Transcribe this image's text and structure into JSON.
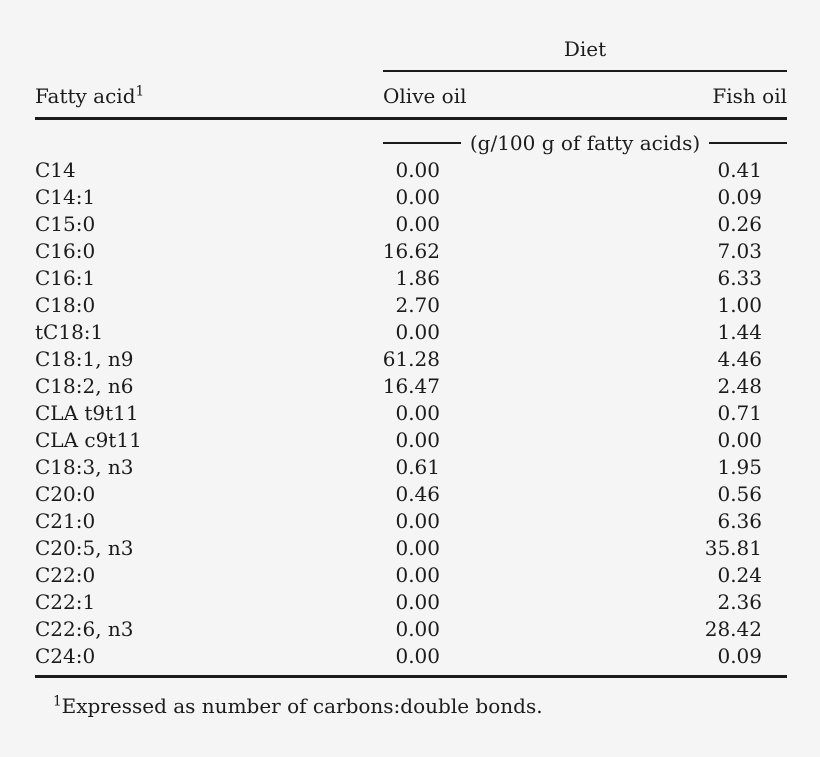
{
  "page": {
    "background_color": "#f5f5f5",
    "text_color": "#1b1b1b"
  },
  "table": {
    "spanner": {
      "label": "Diet"
    },
    "columns": {
      "fatty_acid_label": "Fatty acid",
      "fatty_acid_footnote_marker": "1",
      "olive_oil_label": "Olive oil",
      "fish_oil_label": "Fish oil"
    },
    "units_text": "(g/100 g of fatty acids)",
    "rows": [
      {
        "fatty_acid": "C14",
        "olive_oil": "0.00",
        "fish_oil": "0.41"
      },
      {
        "fatty_acid": "C14:1",
        "olive_oil": "0.00",
        "fish_oil": "0.09"
      },
      {
        "fatty_acid": "C15:0",
        "olive_oil": "0.00",
        "fish_oil": "0.26"
      },
      {
        "fatty_acid": "C16:0",
        "olive_oil": "16.62",
        "fish_oil": "7.03"
      },
      {
        "fatty_acid": "C16:1",
        "olive_oil": "1.86",
        "fish_oil": "6.33"
      },
      {
        "fatty_acid": "C18:0",
        "olive_oil": "2.70",
        "fish_oil": "1.00"
      },
      {
        "fatty_acid": "tC18:1",
        "olive_oil": "0.00",
        "fish_oil": "1.44"
      },
      {
        "fatty_acid": "C18:1, n9",
        "olive_oil": "61.28",
        "fish_oil": "4.46"
      },
      {
        "fatty_acid": "C18:2, n6",
        "olive_oil": "16.47",
        "fish_oil": "2.48"
      },
      {
        "fatty_acid": "CLA t9t11",
        "olive_oil": "0.00",
        "fish_oil": "0.71"
      },
      {
        "fatty_acid": "CLA c9t11",
        "olive_oil": "0.00",
        "fish_oil": "0.00"
      },
      {
        "fatty_acid": "C18:3, n3",
        "olive_oil": "0.61",
        "fish_oil": "1.95"
      },
      {
        "fatty_acid": "C20:0",
        "olive_oil": "0.46",
        "fish_oil": "0.56"
      },
      {
        "fatty_acid": "C21:0",
        "olive_oil": "0.00",
        "fish_oil": "6.36"
      },
      {
        "fatty_acid": "C20:5, n3",
        "olive_oil": "0.00",
        "fish_oil": "35.81"
      },
      {
        "fatty_acid": "C22:0",
        "olive_oil": "0.00",
        "fish_oil": "0.24"
      },
      {
        "fatty_acid": "C22:1",
        "olive_oil": "0.00",
        "fish_oil": "2.36"
      },
      {
        "fatty_acid": "C22:6, n3",
        "olive_oil": "0.00",
        "fish_oil": "28.42"
      },
      {
        "fatty_acid": "C24:0",
        "olive_oil": "0.00",
        "fish_oil": "0.09"
      }
    ]
  },
  "footnote": {
    "marker": "1",
    "text": "Expressed as number of carbons:double bonds."
  }
}
